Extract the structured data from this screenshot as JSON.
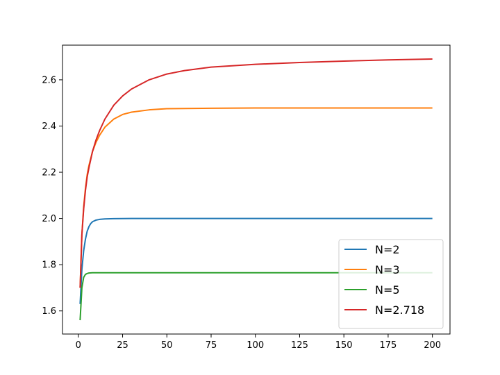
{
  "chart_data": {
    "type": "line",
    "title": "",
    "xlabel": "",
    "ylabel": "",
    "xlim": [
      -8.95,
      209.95
    ],
    "ylim": [
      1.5,
      2.75
    ],
    "xticks": [
      0,
      25,
      50,
      75,
      100,
      125,
      150,
      175,
      200
    ],
    "xtick_labels": [
      "0",
      "25",
      "50",
      "75",
      "100",
      "125",
      "150",
      "175",
      "200"
    ],
    "yticks": [
      1.6,
      1.8,
      2.0,
      2.2,
      2.4,
      2.6
    ],
    "ytick_labels": [
      "1.6",
      "1.8",
      "2.0",
      "2.2",
      "2.4",
      "2.6"
    ],
    "grid": false,
    "legend_position": "lower right",
    "series": [
      {
        "name": "N=2",
        "color": "#1f77b4",
        "x": [
          1,
          2,
          3,
          4,
          5,
          6,
          7,
          8,
          10,
          12,
          15,
          20,
          30,
          50,
          100,
          150,
          200
        ],
        "y": [
          1.63,
          1.78,
          1.86,
          1.91,
          1.945,
          1.965,
          1.978,
          1.986,
          1.993,
          1.996,
          1.998,
          1.999,
          2.0,
          2.0,
          2.0,
          2.0,
          2.0
        ]
      },
      {
        "name": "N=3",
        "color": "#ff7f0e",
        "x": [
          1,
          2,
          3,
          4,
          5,
          6,
          8,
          10,
          12,
          15,
          20,
          25,
          30,
          40,
          50,
          75,
          100,
          150,
          200
        ],
        "y": [
          1.7,
          1.93,
          2.05,
          2.13,
          2.19,
          2.23,
          2.29,
          2.33,
          2.36,
          2.395,
          2.43,
          2.45,
          2.46,
          2.47,
          2.475,
          2.477,
          2.478,
          2.478,
          2.478
        ]
      },
      {
        "name": "N=5",
        "color": "#2ca02c",
        "x": [
          1,
          2,
          3,
          4,
          5,
          6,
          8,
          10,
          15,
          20,
          50,
          100,
          150,
          200
        ],
        "y": [
          1.56,
          1.7,
          1.745,
          1.758,
          1.762,
          1.764,
          1.765,
          1.765,
          1.765,
          1.765,
          1.765,
          1.765,
          1.765,
          1.765
        ]
      },
      {
        "name": "N=2.718",
        "color": "#d62728",
        "x": [
          1,
          2,
          3,
          4,
          5,
          6,
          8,
          10,
          12,
          15,
          20,
          25,
          30,
          40,
          50,
          60,
          75,
          100,
          125,
          150,
          175,
          200
        ],
        "y": [
          1.7,
          1.93,
          2.04,
          2.12,
          2.18,
          2.22,
          2.29,
          2.34,
          2.38,
          2.43,
          2.49,
          2.53,
          2.56,
          2.6,
          2.625,
          2.64,
          2.655,
          2.667,
          2.675,
          2.681,
          2.686,
          2.69
        ]
      }
    ]
  }
}
